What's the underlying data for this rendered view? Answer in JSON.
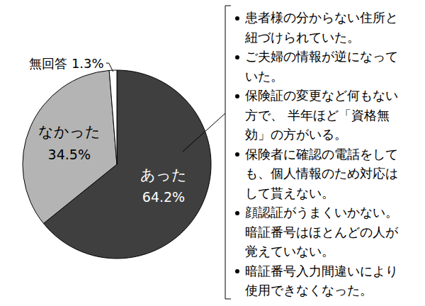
{
  "chart_data": {
    "type": "pie",
    "categories": [
      "あった",
      "なかった",
      "無回答"
    ],
    "values": [
      64.2,
      34.5,
      1.3
    ],
    "value_labels": [
      "64.2%",
      "34.5%",
      "1.3%"
    ],
    "colors": [
      "#3f3f3f",
      "#b4b4b4",
      "#ffffff"
    ],
    "annotations": [
      [
        "患者様の分からない住所と",
        "紐づけられていた。"
      ],
      [
        "ご夫婦の情報が逆になって",
        "いた。"
      ],
      [
        "保険証の変更など何もない",
        "方で、 半年ほど「資格無",
        "効」の方がいる。"
      ],
      [
        "保険者に確認の電話をして",
        "も、個人情報のため対応は",
        "して貰えない。"
      ],
      [
        "顔認証がうまくいかない。",
        "暗証番号はほとんどの人が",
        "覚えていない。"
      ],
      [
        "暗証番号入力間違いにより",
        "使用できなくなった。"
      ]
    ]
  }
}
